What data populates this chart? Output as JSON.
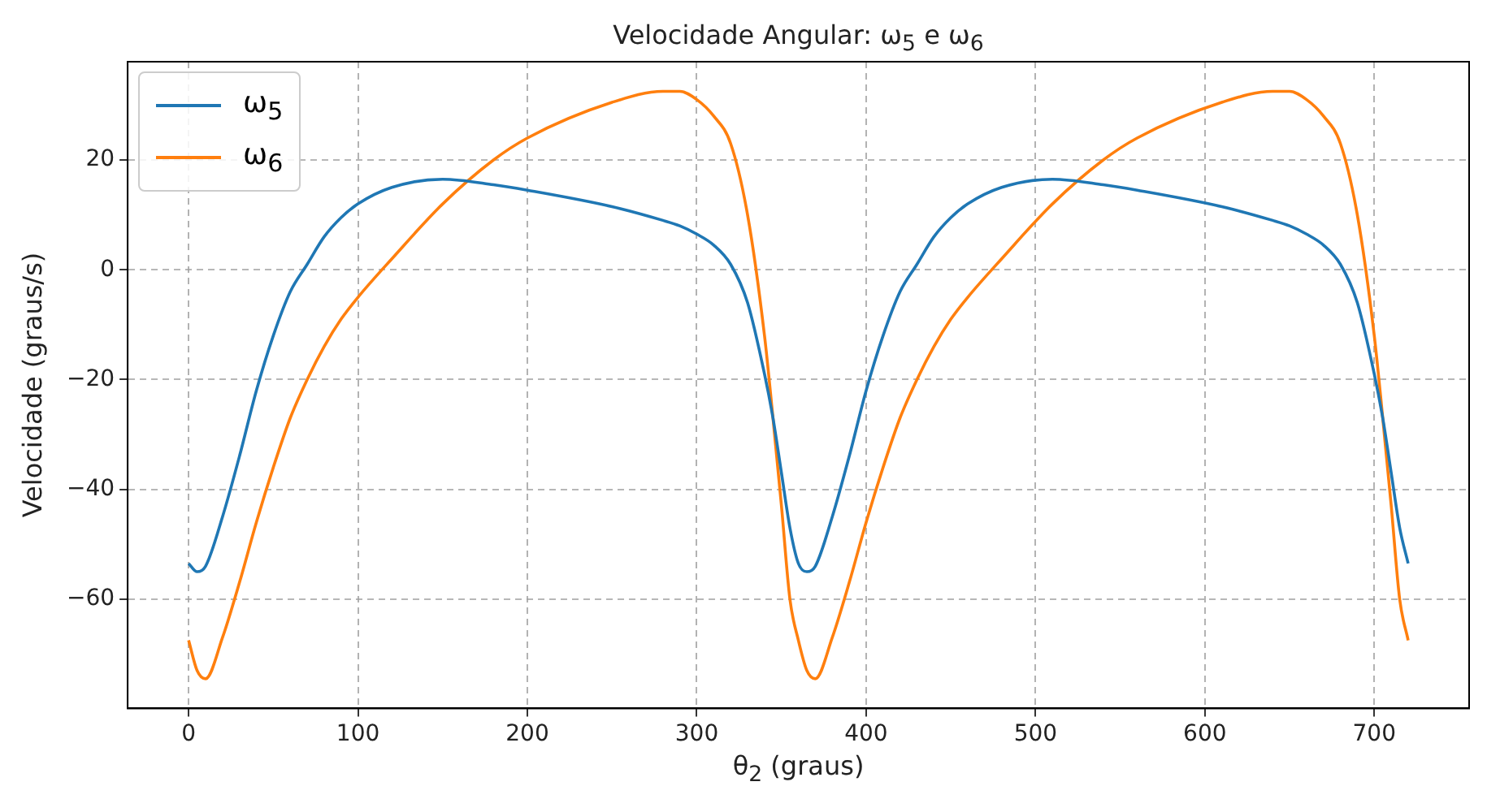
{
  "chart_data": {
    "type": "line",
    "title": "Velocidade Angular: ω$_{5}$ e ω$_{6}$",
    "xlabel": "θ$_{2}$ (graus)",
    "ylabel": "Velocidade (graus/s)",
    "x": [
      0,
      5,
      10,
      20,
      30,
      40,
      50,
      60,
      70,
      80,
      90,
      100,
      120,
      150,
      180,
      200,
      250,
      280,
      290,
      300,
      310,
      320,
      330,
      340,
      345,
      350,
      355,
      360,
      365,
      370,
      380,
      390,
      400,
      410,
      420,
      430,
      440,
      450,
      460,
      480,
      510,
      540,
      560,
      610,
      640,
      650,
      660,
      670,
      680,
      690,
      700,
      705,
      710,
      715,
      720
    ],
    "series": [
      {
        "name": "ω$_{5}$",
        "color": "#1f77b4",
        "values": [
          -53.5,
          -55,
          -54,
          -45,
          -34,
          -22,
          -12,
          -4,
          1,
          6,
          9.5,
          12,
          15,
          16.5,
          15.5,
          14.5,
          11.5,
          9,
          8,
          6.5,
          4.5,
          1,
          -6,
          -19,
          -27,
          -37,
          -47,
          -53.5,
          -55,
          -54,
          -45,
          -34,
          -22,
          -12,
          -4,
          1,
          6,
          9.5,
          12,
          15,
          16.5,
          15.5,
          14.5,
          11.5,
          9,
          8,
          6.5,
          4.5,
          1,
          -6,
          -19,
          -27,
          -37,
          -47,
          -53.5
        ]
      },
      {
        "name": "ω$_{6}$",
        "color": "#ff7f0e",
        "values": [
          -67.5,
          -73,
          -74.5,
          -67,
          -57,
          -46,
          -36,
          -27,
          -20,
          -14,
          -9,
          -5,
          2,
          12,
          20,
          24,
          30.5,
          32.5,
          32.5,
          31,
          28,
          23,
          10,
          -12,
          -27,
          -43,
          -60,
          -67.5,
          -73,
          -74.5,
          -67,
          -57,
          -46,
          -36,
          -27,
          -20,
          -14,
          -9,
          -5,
          2,
          12,
          20,
          24,
          30.5,
          32.5,
          32.5,
          31,
          28,
          23,
          10,
          -12,
          -27,
          -43,
          -60,
          -67.5
        ]
      }
    ],
    "xlim": [
      -36,
      756
    ],
    "xticks": [
      0,
      100,
      200,
      300,
      400,
      500,
      600,
      700
    ],
    "ylim": [
      -79.9,
      37.9
    ],
    "yticks": [
      -60,
      -40,
      -20,
      0,
      20
    ],
    "grid": true,
    "legend": "top left",
    "marker": "none",
    "line_style": "solid"
  }
}
